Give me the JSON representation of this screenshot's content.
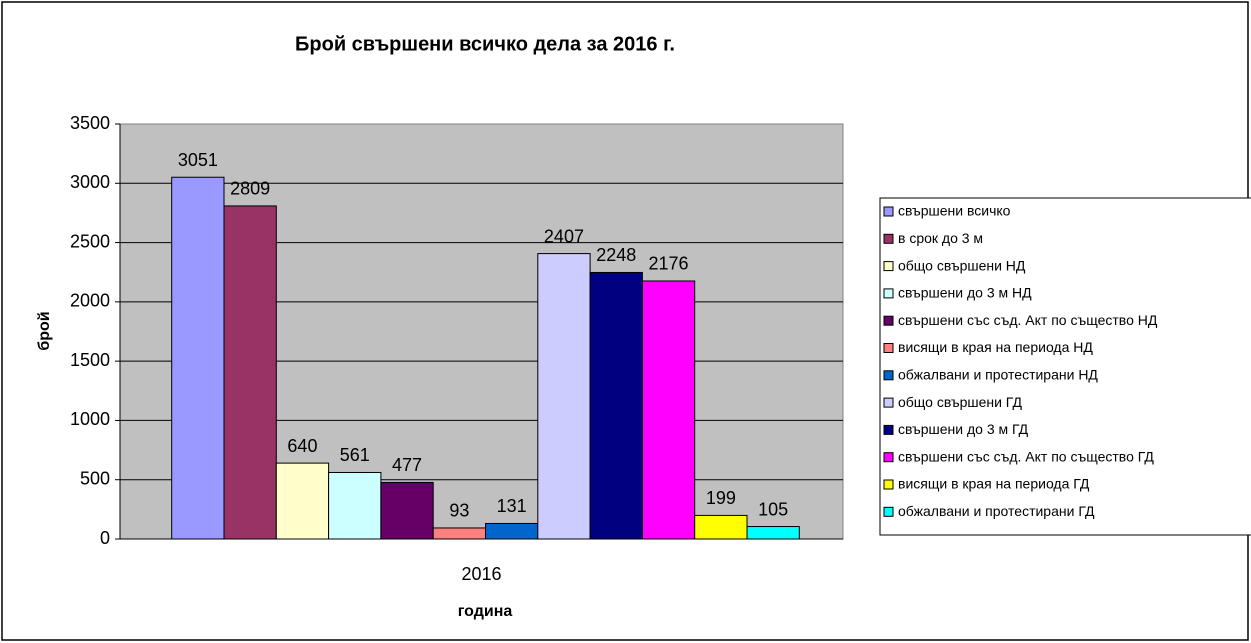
{
  "chart_data": {
    "type": "bar",
    "title": "Брой свършени всичко дела за 2016 г.",
    "x_label": "година",
    "y_label": "брой",
    "categories": [
      "2016"
    ],
    "series": [
      {
        "name": "свършени всичко",
        "color": "#9999ff",
        "values": [
          3051
        ]
      },
      {
        "name": "в срок до 3 м",
        "color": "#993366",
        "values": [
          2809
        ]
      },
      {
        "name": "общо свършени НД",
        "color": "#ffffcc",
        "values": [
          640
        ]
      },
      {
        "name": "свършени до 3 м НД",
        "color": "#ccffff",
        "values": [
          561
        ]
      },
      {
        "name": "свършени със съд. Акт по същество НД",
        "color": "#660066",
        "values": [
          477
        ]
      },
      {
        "name": "висящи в края на периода НД",
        "color": "#ff8080",
        "values": [
          93
        ]
      },
      {
        "name": "обжалвани и протестирани НД",
        "color": "#0066cc",
        "values": [
          131
        ]
      },
      {
        "name": "общо свършени ГД",
        "color": "#ccccff",
        "values": [
          2407
        ]
      },
      {
        "name": "свършени до 3 м ГД",
        "color": "#000080",
        "values": [
          2248
        ]
      },
      {
        "name": "свършени със съд. Акт по същество ГД",
        "color": "#ff00ff",
        "values": [
          2176
        ]
      },
      {
        "name": "висящи в края на периода ГД",
        "color": "#ffff00",
        "values": [
          199
        ]
      },
      {
        "name": "обжалвани и протестирани ГД",
        "color": "#00ffff",
        "values": [
          105
        ]
      }
    ],
    "ylim": [
      0,
      3500
    ],
    "yticks": [
      0,
      500,
      1000,
      1500,
      2000,
      2500,
      3000,
      3500
    ],
    "grid": true,
    "legend": "right"
  }
}
